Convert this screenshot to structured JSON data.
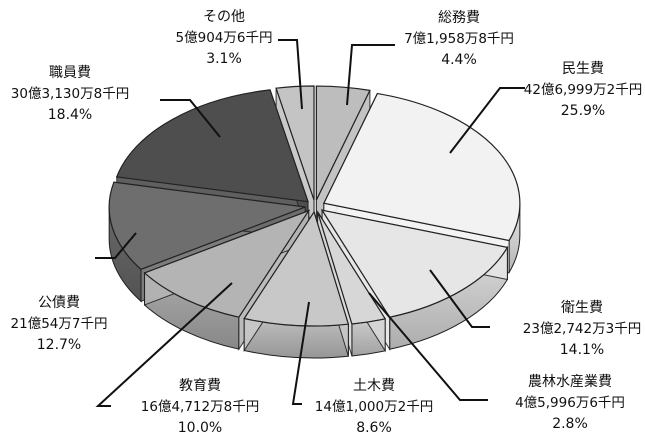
{
  "chart_data": {
    "type": "pie",
    "style": "3d-exploded",
    "title": "",
    "slices": [
      {
        "name": "総務費",
        "value": "7億1,958万8千円",
        "percent": 4.4,
        "color": "#bdbdbd"
      },
      {
        "name": "民生費",
        "value": "42億6,999万2千円",
        "percent": 25.9,
        "color": "#f2f2f2"
      },
      {
        "name": "衛生費",
        "value": "23億2,742万3千円",
        "percent": 14.1,
        "color": "#e6e6e6"
      },
      {
        "name": "農林水産業費",
        "value": "4億5,996万6千円",
        "percent": 2.8,
        "color": "#d7d7d7"
      },
      {
        "name": "土木費",
        "value": "14億1,000万2千円",
        "percent": 8.6,
        "color": "#c8c8c8"
      },
      {
        "name": "教育費",
        "value": "16億4,712万8千円",
        "percent": 10.0,
        "color": "#b4b4b4"
      },
      {
        "name": "公債費",
        "value": "21億54万7千円",
        "percent": 12.7,
        "color": "#6e6e6e"
      },
      {
        "name": "職員費",
        "value": "30億3,130万8千円",
        "percent": 18.4,
        "color": "#4e4e4e"
      },
      {
        "name": "その他",
        "value": "5億904万6千円",
        "percent": 3.1,
        "color": "#c4c4c4"
      }
    ]
  }
}
